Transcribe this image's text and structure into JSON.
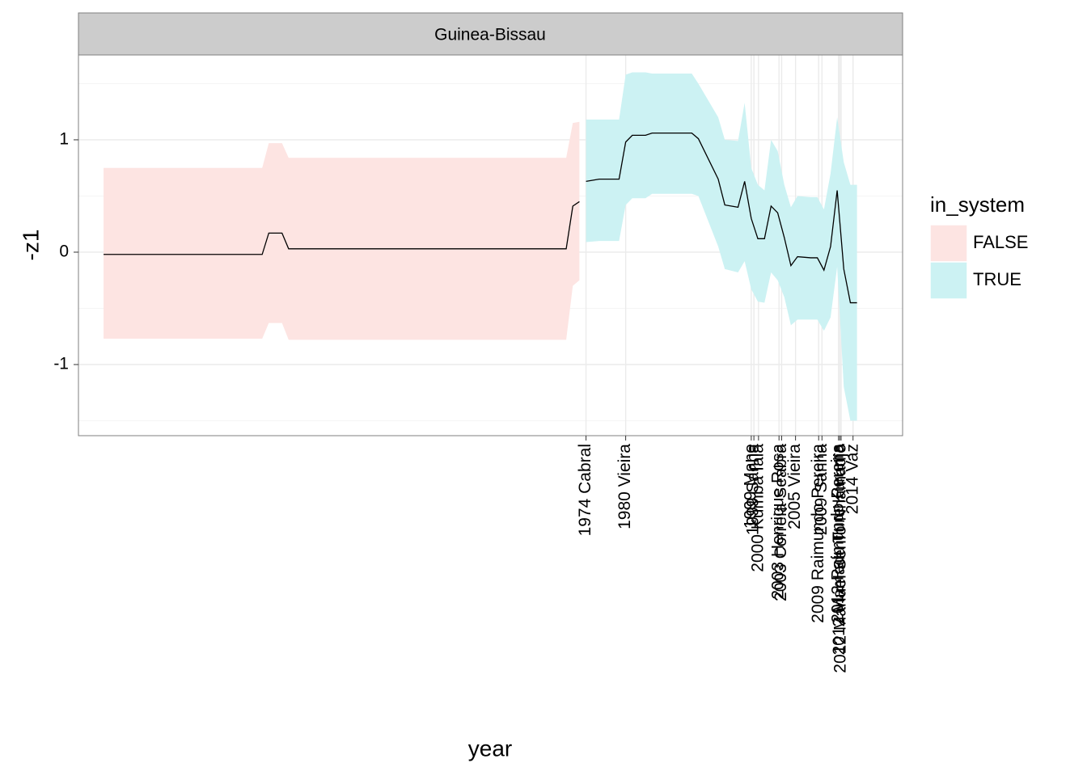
{
  "chart_data": {
    "type": "ribbon-line",
    "facet": "Guinea-Bissau",
    "x_label": "year",
    "y_label": "-z1",
    "legend_title": "in_system",
    "xlim": [
      1897.2,
      2021.9
    ],
    "ylim": [
      -1.633,
      1.755
    ],
    "yticks": [
      -1,
      0,
      1
    ],
    "yminorticks": [
      -1.5,
      -0.5,
      0.5,
      1.5
    ],
    "xticks": [
      {
        "value": 1974,
        "label": "1974 Cabral"
      },
      {
        "value": 1980,
        "label": "1980 Vieira"
      },
      {
        "value": 1999.0,
        "label": "1999 Mane"
      },
      {
        "value": 1999.4,
        "label": "1999 Sanha"
      },
      {
        "value": 2000.1,
        "label": "2000 Kumba Iala"
      },
      {
        "value": 2003.2,
        "label": "2003 Henrique Rosa"
      },
      {
        "value": 2003.6,
        "label": "2003 Correia Seabra"
      },
      {
        "value": 2005.7,
        "label": "2005 Vieira"
      },
      {
        "value": 2009.2,
        "label": "2009 Raimundo Pereira"
      },
      {
        "value": 2009.7,
        "label": "2009 Sanha"
      },
      {
        "value": 2012.2,
        "label": "2012 Raimundo Pereira"
      },
      {
        "value": 2012.4,
        "label": "2012 Mamadu Ture Kuruma"
      },
      {
        "value": 2012.6,
        "label": "2012 Manuel Serifo Nhamadjo"
      },
      {
        "value": 2014.4,
        "label": "2014 Vaz"
      }
    ],
    "grid": true,
    "line_color": "#000000",
    "series": [
      {
        "name": "FALSE",
        "color": "#fde4e2",
        "x": [
          1901,
          1925,
          1926,
          1928,
          1929,
          1971,
          1972,
          1973
        ],
        "values": [
          -0.02,
          -0.02,
          0.17,
          0.17,
          0.03,
          0.03,
          0.41,
          0.45
        ],
        "lower": [
          -0.77,
          -0.77,
          -0.63,
          -0.63,
          -0.78,
          -0.78,
          -0.3,
          -0.25
        ],
        "upper": [
          0.75,
          0.75,
          0.97,
          0.97,
          0.84,
          0.84,
          1.15,
          1.16
        ]
      },
      {
        "name": "TRUE",
        "color": "#ccf2f3",
        "x": [
          1974,
          1976,
          1979,
          1980,
          1981,
          1983,
          1984,
          1990,
          1991,
          1994,
          1995,
          1997,
          1998,
          1999,
          2000,
          2001,
          2002,
          2003,
          2004,
          2005,
          2006,
          2008,
          2009,
          2010,
          2011,
          2012,
          2013,
          2014,
          2015
        ],
        "values": [
          0.63,
          0.65,
          0.65,
          0.98,
          1.04,
          1.04,
          1.06,
          1.06,
          1.01,
          0.65,
          0.42,
          0.4,
          0.63,
          0.3,
          0.12,
          0.12,
          0.41,
          0.35,
          0.13,
          -0.12,
          -0.04,
          -0.05,
          -0.05,
          -0.16,
          0.05,
          0.55,
          -0.15,
          -0.45,
          -0.45
        ],
        "lower": [
          0.09,
          0.1,
          0.1,
          0.42,
          0.48,
          0.48,
          0.52,
          0.52,
          0.5,
          0.05,
          -0.15,
          -0.18,
          -0.08,
          -0.33,
          -0.44,
          -0.45,
          -0.18,
          -0.25,
          -0.4,
          -0.65,
          -0.6,
          -0.6,
          -0.6,
          -0.7,
          -0.58,
          -0.13,
          -1.2,
          -1.5,
          -1.5
        ],
        "upper": [
          1.18,
          1.18,
          1.18,
          1.58,
          1.6,
          1.6,
          1.59,
          1.59,
          1.5,
          1.2,
          1.0,
          0.99,
          1.33,
          0.75,
          0.6,
          0.55,
          1.0,
          0.9,
          0.6,
          0.4,
          0.5,
          0.49,
          0.49,
          0.38,
          0.7,
          1.2,
          0.8,
          0.6,
          0.6
        ]
      }
    ]
  }
}
